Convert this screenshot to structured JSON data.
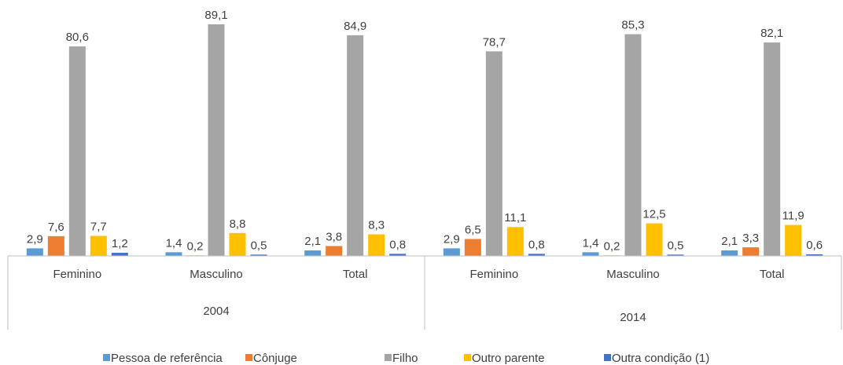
{
  "chart_data": {
    "type": "bar",
    "categories": [
      "Feminino",
      "Masculino",
      "Total",
      "Feminino",
      "Masculino",
      "Total"
    ],
    "category_groups": [
      "2004",
      "2014"
    ],
    "series": [
      {
        "name": "Pessoa de referência",
        "color": "#5b9bd5",
        "values": [
          2.9,
          1.4,
          2.1,
          2.9,
          1.4,
          2.1
        ],
        "value_labels": [
          "2,9",
          "1,4",
          "2,1",
          "2,9",
          "1,4",
          "2,1"
        ]
      },
      {
        "name": "Cônjuge",
        "color": "#ed7d31",
        "values": [
          7.6,
          0.2,
          3.8,
          6.5,
          0.2,
          3.3
        ],
        "value_labels": [
          "7,6",
          "0,2",
          "3,8",
          "6,5",
          "0,2",
          "3,3"
        ]
      },
      {
        "name": "Filho",
        "color": "#a5a5a5",
        "values": [
          80.6,
          89.1,
          84.9,
          78.7,
          85.3,
          82.1
        ],
        "value_labels": [
          "80,6",
          "89,1",
          "84,9",
          "78,7",
          "85,3",
          "82,1"
        ]
      },
      {
        "name": "Outro parente",
        "color": "#ffc000",
        "values": [
          7.7,
          8.8,
          8.3,
          11.1,
          12.5,
          11.9
        ],
        "value_labels": [
          "7,7",
          "8,8",
          "8,3",
          "11,1",
          "12,5",
          "11,9"
        ]
      },
      {
        "name": "Outra condição (1)",
        "color": "#4472c4",
        "values": [
          1.2,
          0.5,
          0.8,
          0.8,
          0.5,
          0.6
        ],
        "value_labels": [
          "1,2",
          "0,5",
          "0,8",
          "0,8",
          "0,5",
          "0,6"
        ]
      }
    ],
    "ylim": [
      0,
      90
    ],
    "legend": "bottom"
  }
}
